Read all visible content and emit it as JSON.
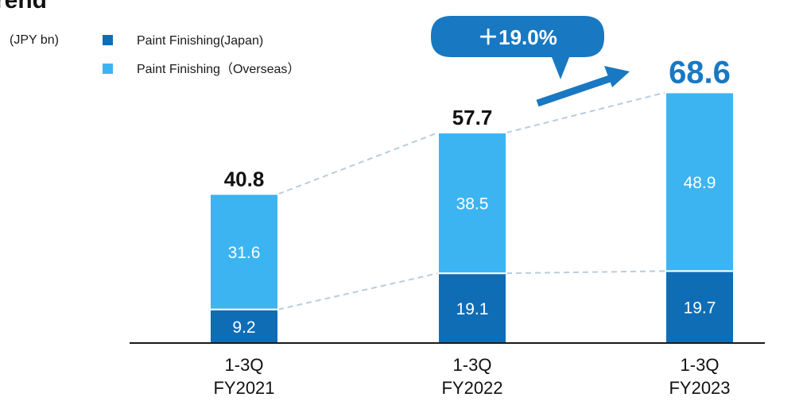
{
  "page": {
    "title_fragment": "rend",
    "unit_label": "(JPY bn)"
  },
  "colors": {
    "japan": "#0f6db6",
    "overseas": "#3db4f2",
    "accent": "#1878c2",
    "connector": "#b7cde0",
    "axis": "#1a1a1a"
  },
  "chart_data": {
    "type": "bar",
    "stacked": true,
    "categories": [
      [
        "1-3Q",
        "FY2021"
      ],
      [
        "1-3Q",
        "FY2022"
      ],
      [
        "1-3Q",
        "FY2023"
      ]
    ],
    "series": [
      {
        "name": "Paint Finishing(Japan)",
        "values": [
          9.2,
          19.1,
          19.7
        ]
      },
      {
        "name": "Paint Finishing（Overseas）",
        "values": [
          31.6,
          38.5,
          48.9
        ]
      }
    ],
    "totals": [
      "40.8",
      "57.7",
      "68.6"
    ],
    "value_labels": [
      [
        "9.2",
        "19.1",
        "19.7"
      ],
      [
        "31.6",
        "38.5",
        "48.9"
      ]
    ],
    "annotation": "＋19.0%",
    "ylim": [
      0,
      80
    ],
    "grid": false,
    "legend_position": "top-left"
  }
}
